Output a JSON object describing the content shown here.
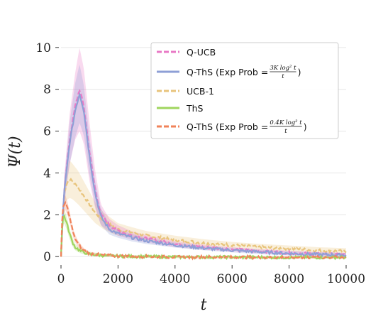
{
  "chart_data": {
    "type": "line",
    "xlabel": "t",
    "ylabel": "Ψ(t)",
    "xlim": [
      0,
      10000
    ],
    "ylim": [
      -0.3,
      10.3
    ],
    "xticks": [
      0,
      2000,
      4000,
      6000,
      8000,
      10000
    ],
    "yticks": [
      0,
      2,
      4,
      6,
      8,
      10
    ],
    "grid": "horizontal",
    "legend_position": "top-right",
    "series": [
      {
        "name": "Q-UCB",
        "color": "#e87ac6",
        "dash": "dashed",
        "x": [
          0,
          100,
          300,
          500,
          650,
          800,
          1000,
          1200,
          1400,
          1700,
          2000,
          2500,
          3000,
          4000,
          5000,
          6000,
          7000,
          8000,
          9000,
          10000
        ],
        "y": [
          0,
          3.0,
          5.6,
          7.2,
          8.0,
          7.2,
          5.0,
          3.2,
          2.0,
          1.5,
          1.25,
          1.0,
          0.85,
          0.6,
          0.45,
          0.35,
          0.25,
          0.18,
          0.12,
          0.08
        ],
        "band": [
          0,
          0.6,
          1.2,
          1.6,
          2.0,
          1.8,
          1.4,
          0.9,
          0.5,
          0.3,
          0.25,
          0.2,
          0.18,
          0.15,
          0.12,
          0.1,
          0.1,
          0.1,
          0.1,
          0.1
        ]
      },
      {
        "name": "Q-ThS (Exp Prob = 3K log² t / t)",
        "legend_main": "Q-ThS (Exp Prob = ",
        "legend_num": "3K log² t",
        "legend_den": "t",
        "legend_end": ")",
        "color": "#8e9fd6",
        "dash": "solid",
        "x": [
          0,
          100,
          300,
          500,
          650,
          800,
          1000,
          1200,
          1400,
          1700,
          2000,
          2500,
          3000,
          4000,
          5000,
          6000,
          7000,
          8000,
          9000,
          10000
        ],
        "y": [
          0,
          2.9,
          5.4,
          7.0,
          7.8,
          7.0,
          4.8,
          3.0,
          1.9,
          1.3,
          1.1,
          0.9,
          0.75,
          0.55,
          0.4,
          0.3,
          0.22,
          0.15,
          0.1,
          0.07
        ],
        "band": [
          0,
          0.5,
          1.0,
          1.3,
          1.4,
          1.2,
          0.9,
          0.6,
          0.4,
          0.25,
          0.2,
          0.18,
          0.15,
          0.12,
          0.1,
          0.1,
          0.1,
          0.1,
          0.1,
          0.1
        ]
      },
      {
        "name": "UCB-1",
        "color": "#e8c47c",
        "dash": "dashed",
        "x": [
          0,
          100,
          200,
          300,
          400,
          600,
          800,
          1000,
          1200,
          1500,
          1800,
          2000,
          2500,
          3000,
          4000,
          5000,
          6000,
          7000,
          8000,
          9000,
          10000
        ],
        "y": [
          0,
          3.0,
          3.5,
          3.7,
          3.6,
          3.3,
          2.9,
          2.5,
          2.1,
          1.7,
          1.45,
          1.3,
          1.15,
          1.0,
          0.8,
          0.65,
          0.55,
          0.45,
          0.38,
          0.3,
          0.25
        ],
        "band": [
          0,
          0.6,
          0.8,
          0.9,
          0.85,
          0.8,
          0.7,
          0.6,
          0.5,
          0.4,
          0.35,
          0.3,
          0.25,
          0.22,
          0.2,
          0.18,
          0.15,
          0.15,
          0.15,
          0.15,
          0.15
        ]
      },
      {
        "name": "ThS",
        "color": "#9fd55e",
        "dash": "solid",
        "x": [
          0,
          50,
          100,
          200,
          300,
          400,
          500,
          700,
          1000,
          1500,
          2000,
          3000,
          4000,
          6000,
          8000,
          10000
        ],
        "y": [
          0,
          1.7,
          2.0,
          1.6,
          1.1,
          0.7,
          0.45,
          0.25,
          0.12,
          0.05,
          0.02,
          0.0,
          -0.02,
          -0.03,
          -0.04,
          -0.04
        ],
        "band": [
          0,
          0.3,
          0.35,
          0.3,
          0.25,
          0.2,
          0.15,
          0.1,
          0.08,
          0.06,
          0.05,
          0.05,
          0.05,
          0.05,
          0.05,
          0.05
        ]
      },
      {
        "name": "Q-ThS (Exp Prob = 0.4K log² t / t)",
        "legend_main": "Q-ThS (Exp Prob = ",
        "legend_num": "0.4K log² t",
        "legend_den": "t",
        "legend_end": ")",
        "color": "#f0835a",
        "dash": "dashed",
        "x": [
          0,
          50,
          150,
          250,
          350,
          450,
          600,
          800,
          1000,
          1500,
          2000,
          3000,
          4000,
          6000,
          8000,
          10000
        ],
        "y": [
          0,
          2.2,
          2.6,
          2.2,
          1.6,
          1.0,
          0.6,
          0.3,
          0.15,
          0.06,
          0.03,
          0.0,
          -0.02,
          -0.03,
          -0.04,
          -0.04
        ],
        "band": [
          0,
          0.3,
          0.35,
          0.3,
          0.25,
          0.2,
          0.15,
          0.1,
          0.08,
          0.06,
          0.05,
          0.05,
          0.05,
          0.05,
          0.05,
          0.05
        ]
      }
    ]
  }
}
